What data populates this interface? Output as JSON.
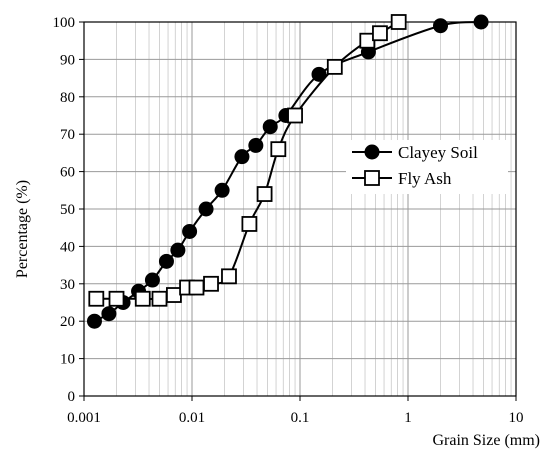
{
  "chart_data": {
    "type": "line",
    "title": "",
    "xlabel": "Grain Size (mm)",
    "ylabel": "Percentage (%)",
    "x_scale": "log",
    "xlim": [
      0.001,
      10
    ],
    "ylim": [
      0,
      100
    ],
    "x_ticks": [
      0.001,
      0.01,
      0.1,
      1,
      10
    ],
    "x_tick_labels": [
      "0.001",
      "0.01",
      "0.1",
      "1",
      "10"
    ],
    "y_ticks": [
      0,
      10,
      20,
      30,
      40,
      50,
      60,
      70,
      80,
      90,
      100
    ],
    "y_tick_labels": [
      "0",
      "10",
      "20",
      "30",
      "40",
      "50",
      "60",
      "70",
      "80",
      "90",
      "100"
    ],
    "grid": true,
    "legend_position": "center-right",
    "series": [
      {
        "name": "Clayey Soil",
        "marker": "filled-circle",
        "color": "#000000",
        "points": [
          {
            "x": 0.00125,
            "y": 20
          },
          {
            "x": 0.0017,
            "y": 22
          },
          {
            "x": 0.0023,
            "y": 25
          },
          {
            "x": 0.0032,
            "y": 28
          },
          {
            "x": 0.0043,
            "y": 31
          },
          {
            "x": 0.0058,
            "y": 36
          },
          {
            "x": 0.0074,
            "y": 39
          },
          {
            "x": 0.0095,
            "y": 44
          },
          {
            "x": 0.0135,
            "y": 50
          },
          {
            "x": 0.019,
            "y": 55
          },
          {
            "x": 0.029,
            "y": 64
          },
          {
            "x": 0.039,
            "y": 67
          },
          {
            "x": 0.053,
            "y": 72
          },
          {
            "x": 0.074,
            "y": 75
          },
          {
            "x": 0.15,
            "y": 86
          },
          {
            "x": 0.43,
            "y": 92
          },
          {
            "x": 2,
            "y": 99
          },
          {
            "x": 4.75,
            "y": 100
          }
        ]
      },
      {
        "name": "Fly Ash",
        "marker": "open-square",
        "color": "#000000",
        "points": [
          {
            "x": 0.0013,
            "y": 26
          },
          {
            "x": 0.002,
            "y": 26
          },
          {
            "x": 0.0035,
            "y": 26
          },
          {
            "x": 0.005,
            "y": 26
          },
          {
            "x": 0.0068,
            "y": 27
          },
          {
            "x": 0.009,
            "y": 29
          },
          {
            "x": 0.011,
            "y": 29
          },
          {
            "x": 0.015,
            "y": 30
          },
          {
            "x": 0.022,
            "y": 32
          },
          {
            "x": 0.034,
            "y": 46
          },
          {
            "x": 0.047,
            "y": 54
          },
          {
            "x": 0.063,
            "y": 66
          },
          {
            "x": 0.09,
            "y": 75
          },
          {
            "x": 0.21,
            "y": 88
          },
          {
            "x": 0.42,
            "y": 95
          },
          {
            "x": 0.55,
            "y": 97
          },
          {
            "x": 0.82,
            "y": 100
          }
        ]
      }
    ]
  }
}
